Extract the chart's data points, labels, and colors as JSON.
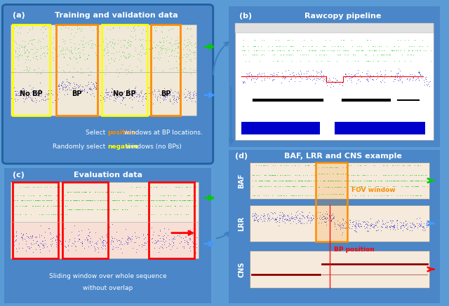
{
  "fig_width": 6.4,
  "fig_height": 4.37,
  "bg_outer": "#5b9bd5",
  "panel_bg": "#4a86c8",
  "green_color": "#00cc00",
  "blue_color": "#0000cc",
  "darkred_color": "#8b0000",
  "orange_color": "#ff8c00",
  "yellow_color": "#ffff00",
  "red_color": "#cc0000",
  "arrow_color": "#3a7fc1",
  "panel_a_title": "Training and validation data",
  "panel_b_title": "Rawcopy pipeline",
  "panel_c_title": "Evaluation data",
  "panel_d_title": "BAF, LRR and CNS example",
  "text_sliding": "Sliding window over whole sequence",
  "text_sliding2": "without overlap",
  "fov_label": "FOV window",
  "bp_label": "BP position",
  "baf_label": "BAF",
  "lrr_label": "LRR",
  "cns_label": "CNS"
}
